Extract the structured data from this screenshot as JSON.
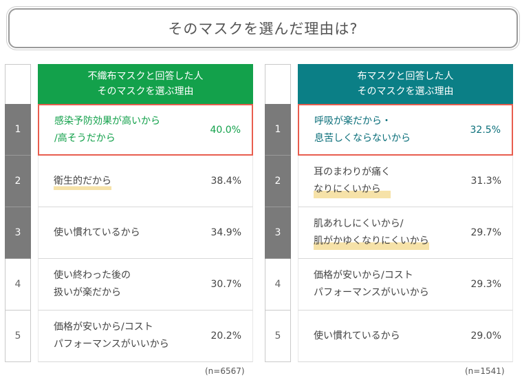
{
  "title": "そのマスクを選んだ理由は?",
  "chart_data": [
    {
      "type": "table",
      "header": [
        "不織布マスクと回答した人",
        "そのマスクを選ぶ理由"
      ],
      "header_color": "#13a14b",
      "accent_text_color": "#13a14b",
      "ranks": [
        "1",
        "2",
        "3",
        "4",
        "5"
      ],
      "reasons": [
        "感染予防効果が高いから\n/高そうだから",
        "衛生的だから",
        "使い慣れているから",
        "使い終わった後の\n扱いが楽だから",
        "価格が安いから/コスト\nパフォーマンスがいいから"
      ],
      "percent_labels": [
        "40.0%",
        "38.4%",
        "34.9%",
        "30.7%",
        "20.2%"
      ],
      "values": [
        40.0,
        38.4,
        34.9,
        30.7,
        20.2
      ],
      "underlined": [
        false,
        true,
        false,
        false,
        false
      ],
      "sample": "(n=6567)"
    },
    {
      "type": "table",
      "header": [
        "布マスクと回答した人",
        "そのマスクを選ぶ理由"
      ],
      "header_color": "#0b7f86",
      "accent_text_color": "#0b6f7a",
      "ranks": [
        "1",
        "2",
        "3",
        "4",
        "5"
      ],
      "reasons": [
        "呼吸が楽だから・\n息苦しくならないから",
        "耳のまわりが痛く\nなりにくいから",
        "肌あれしにくいから/\n肌がかゆくなりにくいから",
        "価格が安いから/コスト\nパフォーマンスがいいから",
        "使い慣れているから"
      ],
      "percent_labels": [
        "32.5%",
        "31.3%",
        "29.7%",
        "29.3%",
        "29.0%"
      ],
      "values": [
        32.5,
        31.3,
        29.7,
        29.3,
        29.0
      ],
      "underlined": [
        false,
        true,
        true,
        false,
        false
      ],
      "sample": "(n=1541)"
    }
  ],
  "colors": {
    "rank_dark": "#7a7a7a",
    "highlight_border": "#e85d4e",
    "underline": "#f6e2a8"
  }
}
